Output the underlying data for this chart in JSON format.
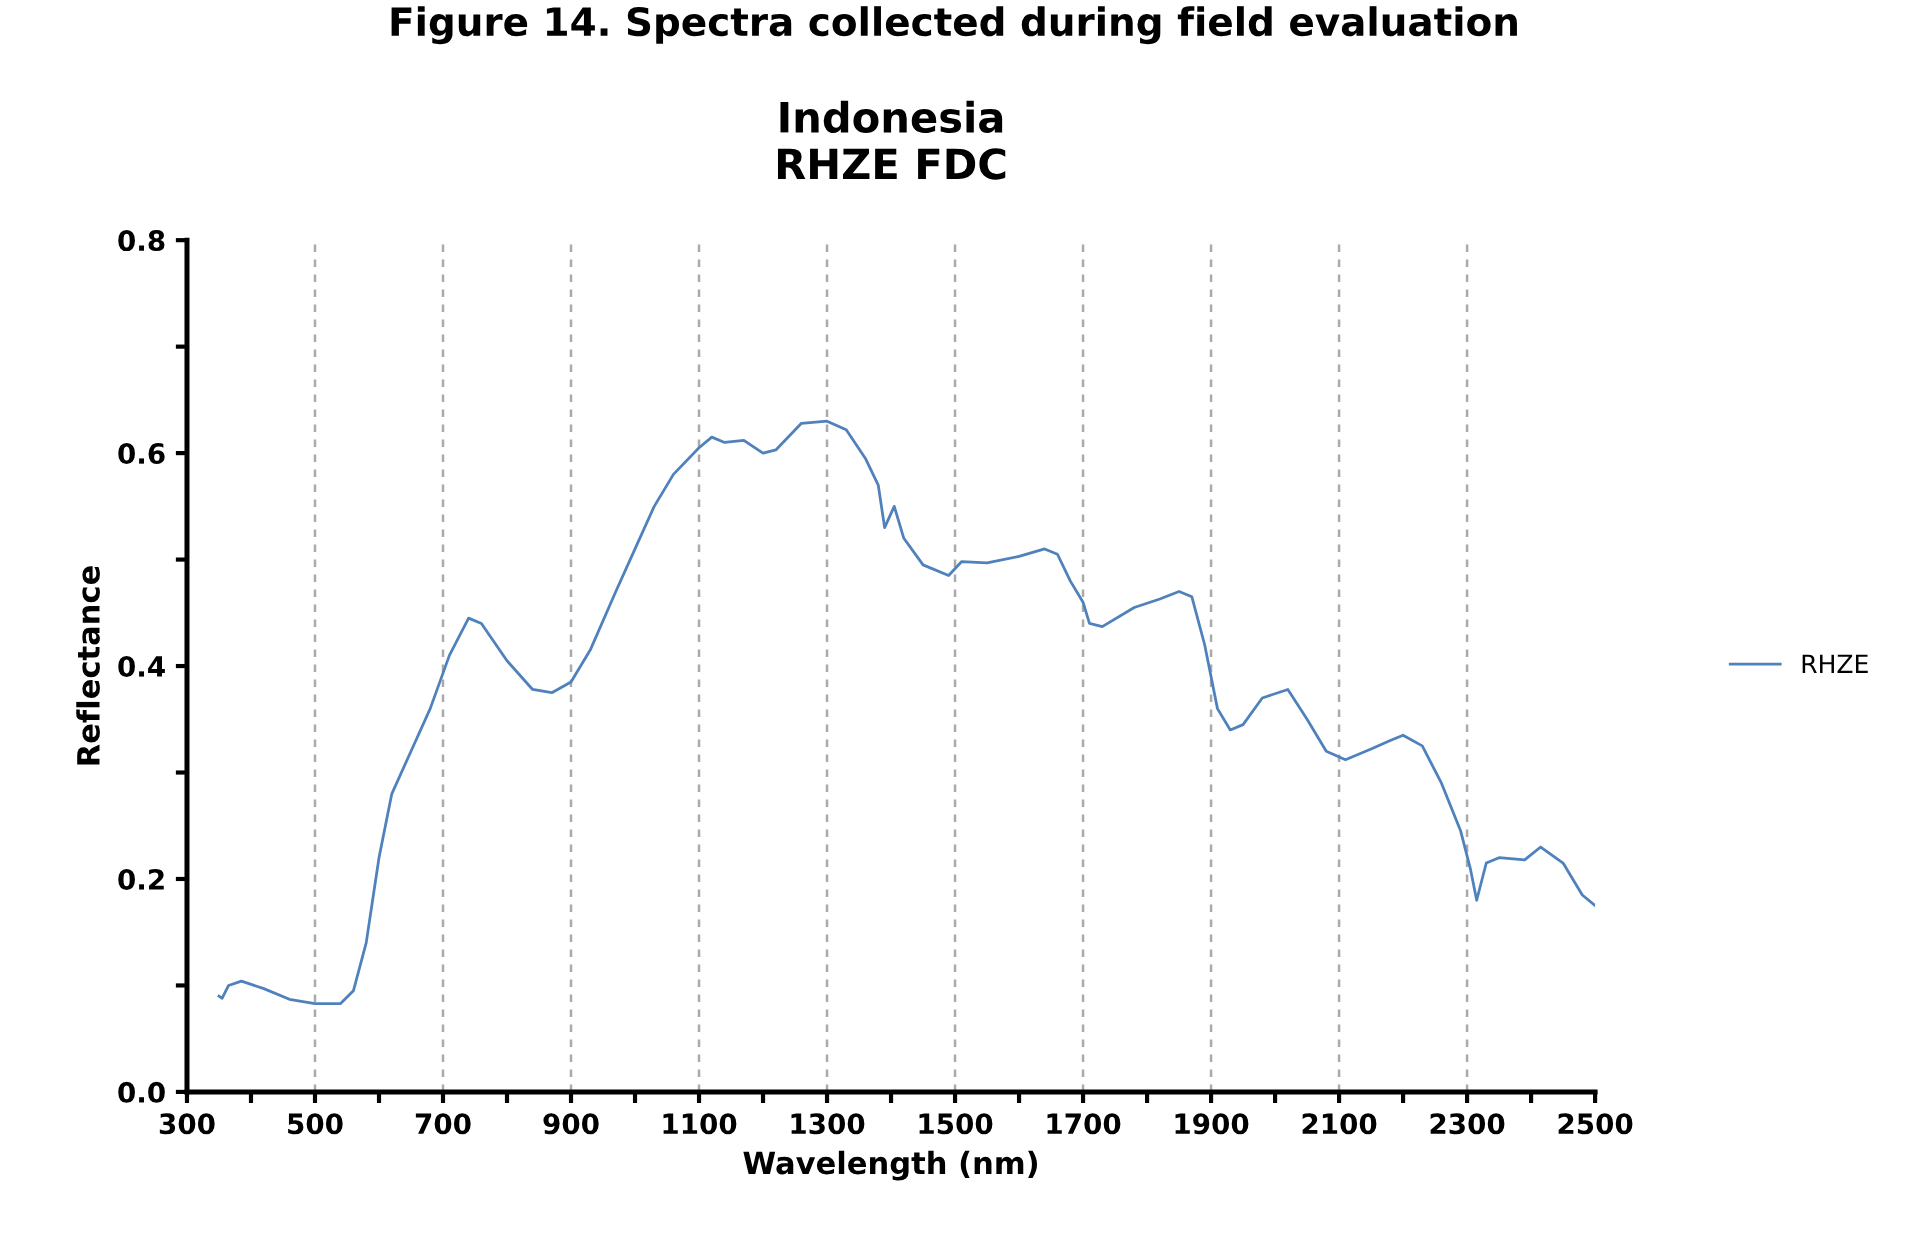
{
  "chart_data": {
    "type": "line",
    "title": "Indonesia\nRHZE FDC",
    "subtitle": "Figure 14. Spectra collected during field evaluation",
    "xlabel": "Wavelength (nm)",
    "ylabel": "Reflectance",
    "x": [
      350,
      355,
      365,
      385,
      420,
      460,
      500,
      540,
      560,
      580,
      600,
      620,
      650,
      680,
      710,
      740,
      760,
      800,
      840,
      870,
      900,
      930,
      970,
      1000,
      1030,
      1060,
      1100,
      1120,
      1140,
      1170,
      1200,
      1220,
      1260,
      1300,
      1330,
      1360,
      1380,
      1390,
      1405,
      1420,
      1450,
      1490,
      1510,
      1550,
      1600,
      1640,
      1660,
      1680,
      1700,
      1710,
      1730,
      1780,
      1820,
      1850,
      1870,
      1890,
      1910,
      1930,
      1950,
      1980,
      2020,
      2050,
      2080,
      2110,
      2150,
      2180,
      2200,
      2230,
      2260,
      2290,
      2305,
      2315,
      2330,
      2350,
      2390,
      2415,
      2450,
      2480,
      2500
    ],
    "series": [
      {
        "name": "RHZE",
        "color": "#4f81bd",
        "values": [
          0.09,
          0.088,
          0.1,
          0.104,
          0.097,
          0.087,
          0.083,
          0.083,
          0.095,
          0.14,
          0.22,
          0.28,
          0.32,
          0.36,
          0.41,
          0.445,
          0.44,
          0.405,
          0.378,
          0.375,
          0.385,
          0.415,
          0.47,
          0.51,
          0.55,
          0.58,
          0.605,
          0.615,
          0.61,
          0.612,
          0.6,
          0.603,
          0.628,
          0.63,
          0.622,
          0.595,
          0.57,
          0.53,
          0.55,
          0.52,
          0.495,
          0.485,
          0.498,
          0.497,
          0.503,
          0.51,
          0.505,
          0.48,
          0.46,
          0.44,
          0.437,
          0.455,
          0.463,
          0.47,
          0.465,
          0.42,
          0.36,
          0.34,
          0.345,
          0.37,
          0.378,
          0.35,
          0.32,
          0.312,
          0.322,
          0.33,
          0.335,
          0.325,
          0.29,
          0.245,
          0.21,
          0.18,
          0.215,
          0.22,
          0.218,
          0.23,
          0.215,
          0.185,
          0.175
        ]
      }
    ],
    "xlim": [
      300,
      2500
    ],
    "ylim": [
      0,
      0.8
    ],
    "xticks": [
      300,
      {
        "value": 400,
        "label": null
      },
      500,
      {
        "value": 600,
        "label": null
      },
      700,
      {
        "value": 800,
        "label": null
      },
      900,
      {
        "value": 1000,
        "label": null
      },
      1100,
      {
        "value": 1200,
        "label": null
      },
      1300,
      {
        "value": 1400,
        "label": null
      },
      1500,
      {
        "value": 1600,
        "label": null
      },
      1700,
      {
        "value": 1800,
        "label": null
      },
      1900,
      {
        "value": 2000,
        "label": null
      },
      2100,
      {
        "value": 2200,
        "label": null
      },
      2300,
      {
        "value": 2400,
        "label": null
      },
      2500
    ],
    "yticks": [
      {
        "value": 0,
        "label": "0.0"
      },
      {
        "value": 0.1,
        "label": null
      },
      {
        "value": 0.2,
        "label": "0.2"
      },
      {
        "value": 0.3,
        "label": null
      },
      {
        "value": 0.4,
        "label": "0.4"
      },
      {
        "value": 0.5,
        "label": null
      },
      {
        "value": 0.6,
        "label": "0.6"
      },
      {
        "value": 0.7,
        "label": null
      },
      {
        "value": 0.8,
        "label": "0.8"
      }
    ],
    "grid": "x",
    "legend": "right",
    "marker": "none",
    "line_style": "solid"
  }
}
